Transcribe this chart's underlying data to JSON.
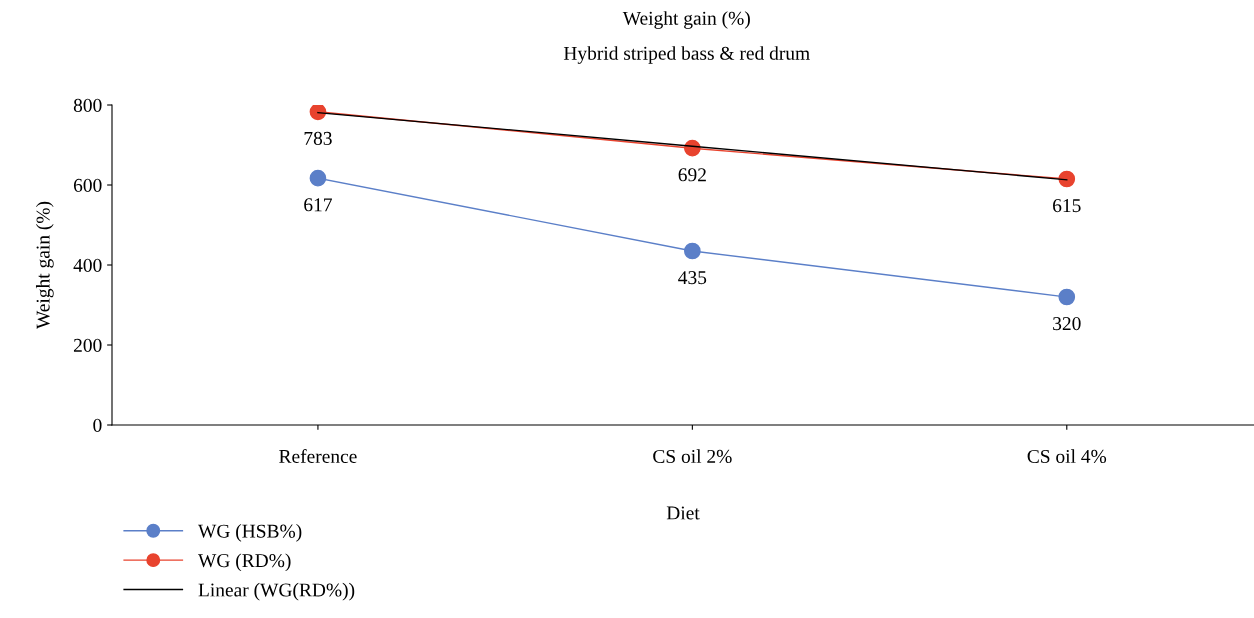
{
  "chart_data": {
    "type": "line",
    "title": "Weight gain (%)",
    "subtitle": "Hybrid striped bass & red drum",
    "xlabel": "Diet",
    "ylabel": "Weight gain (%)",
    "categories": [
      "Reference",
      "CS oil 2%",
      "CS oil 4%"
    ],
    "series": [
      {
        "name": "WG (HSB%)",
        "color": "#5b7fc8",
        "values": [
          617,
          435,
          320
        ],
        "value_labels": [
          "617",
          "435",
          "320"
        ],
        "marker": "circle"
      },
      {
        "name": "WG (RD%)",
        "color": "#e8432e",
        "values": [
          783,
          692,
          615
        ],
        "value_labels": [
          "783",
          "692",
          "615"
        ],
        "marker": "circle"
      },
      {
        "name": "Linear (WG(RD%))",
        "color": "#000000",
        "values": [
          781,
          697,
          613
        ],
        "marker": "none"
      }
    ],
    "ylim": [
      0,
      800
    ],
    "yticks": [
      0,
      200,
      400,
      600,
      800
    ],
    "grid": false,
    "legend": "bottom left",
    "line_style": "solid"
  }
}
